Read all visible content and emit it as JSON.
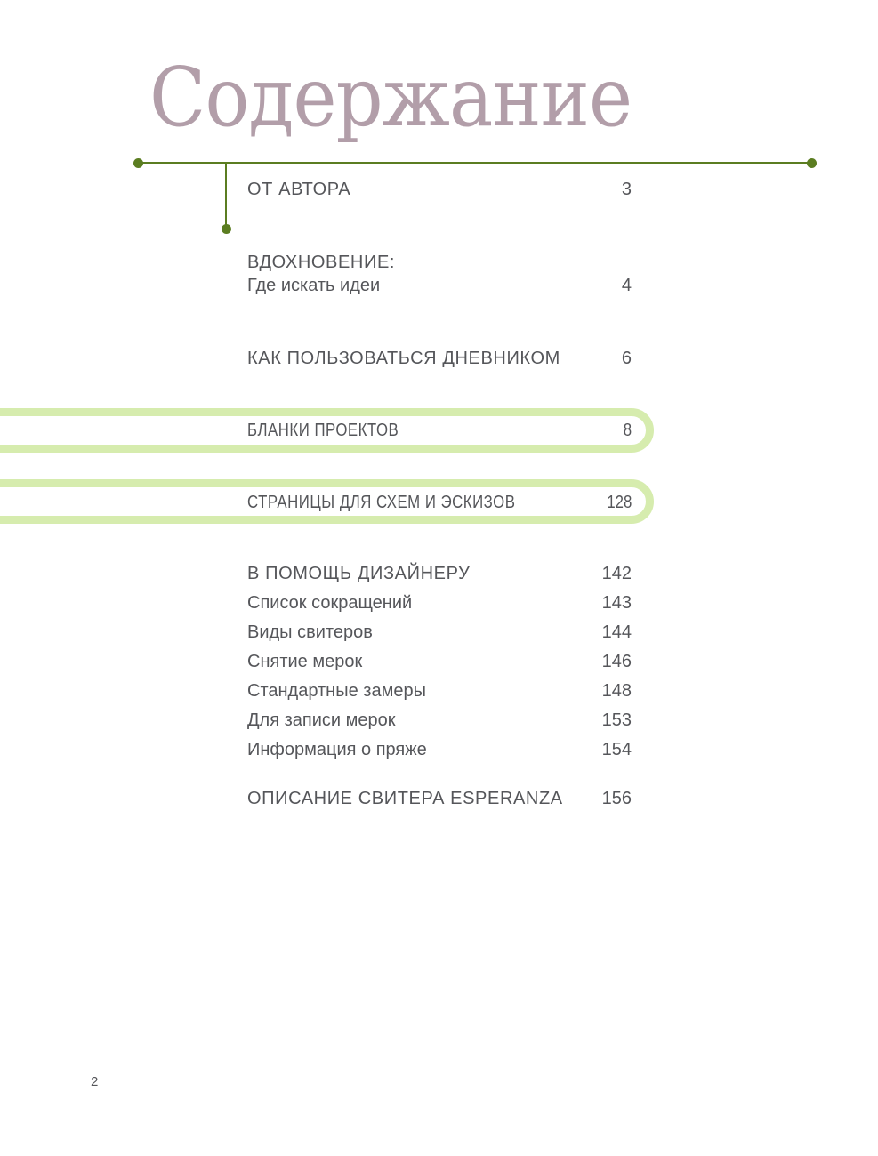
{
  "theme": {
    "title-color": "#b29ea9",
    "line-color": "#5b7d21",
    "highlight-color": "#d6ecae",
    "text-color": "#55565a"
  },
  "header": {
    "title": "Содержание"
  },
  "toc": {
    "entries": [
      {
        "label": "ОТ АВТОРА",
        "page": "3"
      },
      {
        "label": "ВДОХНОВЕНИЕ:",
        "sublabel": "Где искать идеи",
        "page": "4"
      },
      {
        "label": "КАК ПОЛЬЗОВАТЬСЯ ДНЕВНИКОМ",
        "page": "6"
      },
      {
        "label": "БЛАНКИ ПРОЕКТОВ",
        "page": "8",
        "highlighted": true
      },
      {
        "label": "СТРАНИЦЫ ДЛЯ СХЕМ И ЭСКИЗОВ",
        "page": "128",
        "highlighted": true
      },
      {
        "label": "В ПОМОЩЬ ДИЗАЙНЕРУ",
        "page": "142"
      },
      {
        "label": "Список сокращений",
        "page": "143"
      },
      {
        "label": "Виды свитеров",
        "page": "144"
      },
      {
        "label": "Снятие мерок",
        "page": "146"
      },
      {
        "label": "Стандартные замеры",
        "page": "148"
      },
      {
        "label": "Для записи мерок",
        "page": "153"
      },
      {
        "label": "Информация о пряже",
        "page": "154"
      },
      {
        "label": "ОПИСАНИЕ СВИТЕРА ESPERANZA",
        "page": "156"
      }
    ]
  },
  "footer": {
    "page_number": "2"
  }
}
